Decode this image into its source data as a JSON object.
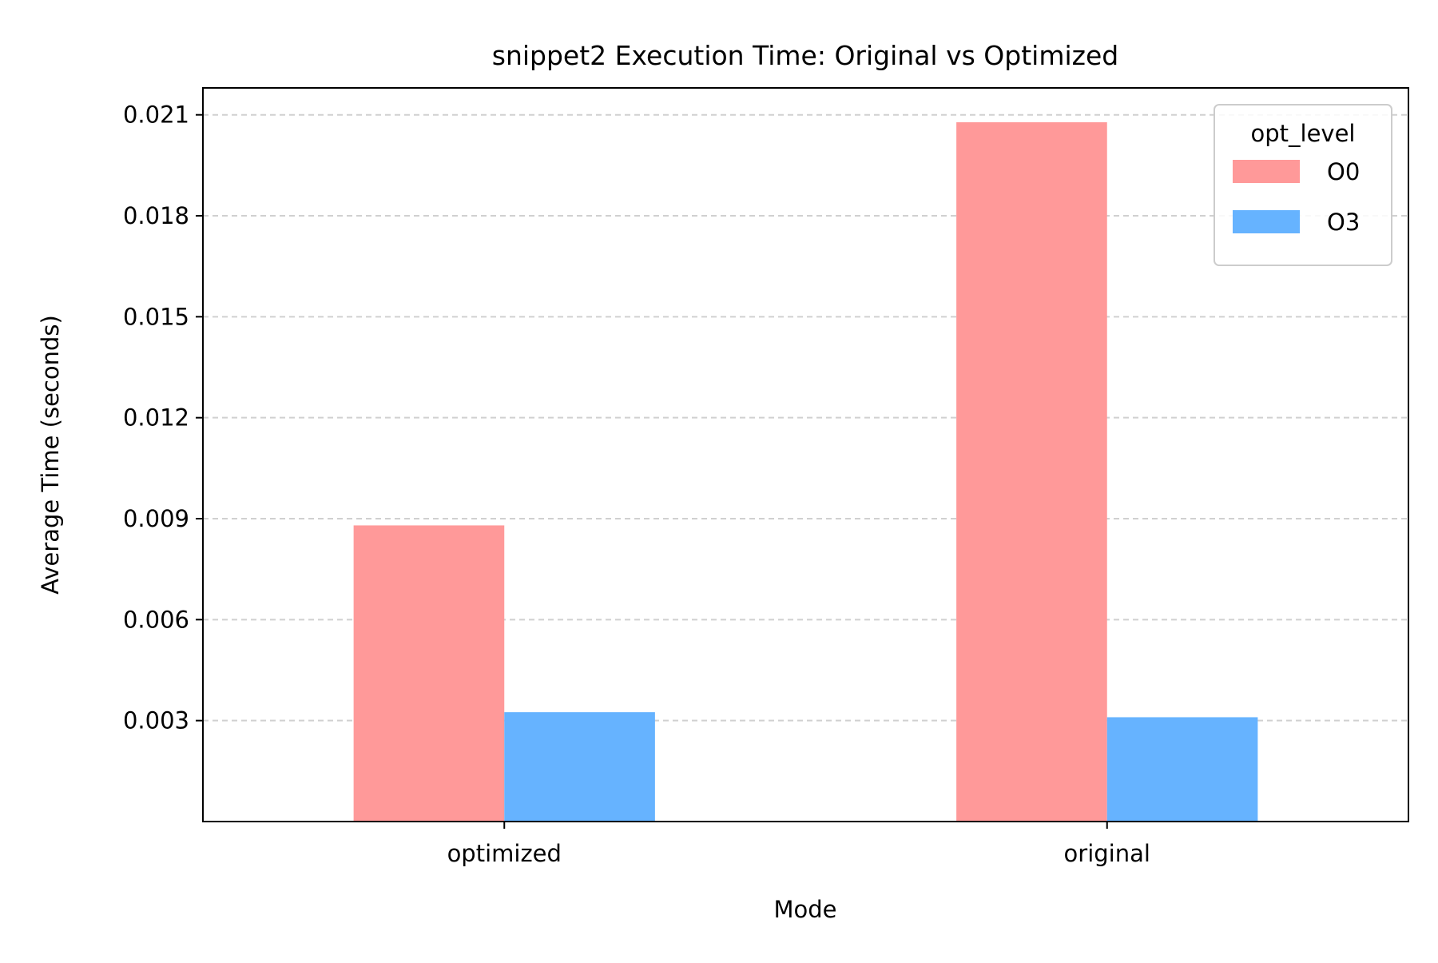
{
  "chart_data": {
    "type": "bar",
    "title": "snippet2 Execution Time: Original vs Optimized",
    "xlabel": "Mode",
    "ylabel": "Average Time (seconds)",
    "categories": [
      "optimized",
      "original"
    ],
    "series": [
      {
        "name": "O0",
        "values": [
          0.0088,
          0.02078
        ],
        "color": "#ff9999"
      },
      {
        "name": "O3",
        "values": [
          0.00325,
          0.0031
        ],
        "color": "#66b3ff"
      }
    ],
    "ylim": [
      0,
      0.0218
    ],
    "yticks": [
      0.003,
      0.006,
      0.009,
      0.012,
      0.015,
      0.018,
      0.021
    ],
    "ytick_labels": [
      "0.003",
      "0.006",
      "0.009",
      "0.012",
      "0.015",
      "0.018",
      "0.021"
    ],
    "grid": "y-dashed",
    "legend": {
      "title": "opt_level",
      "placement": "top-right"
    }
  }
}
